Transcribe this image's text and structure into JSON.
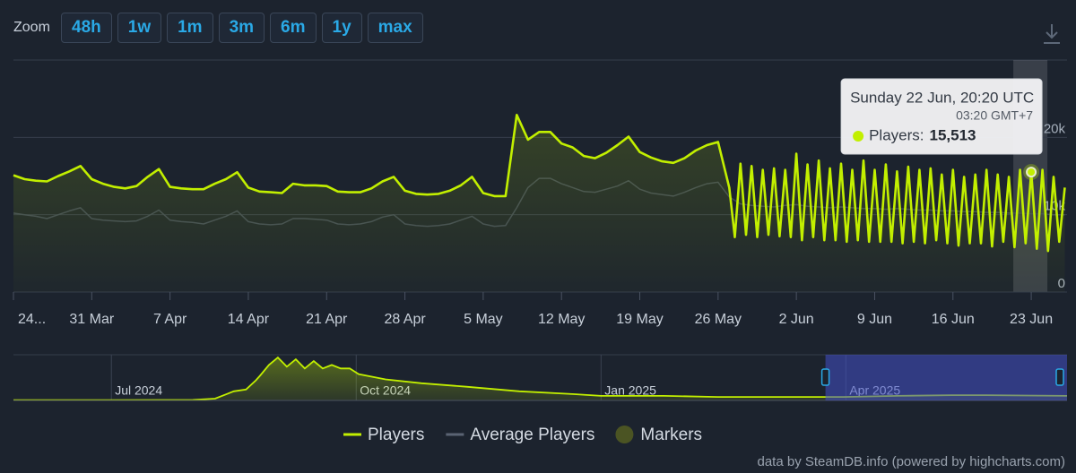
{
  "zoom": {
    "label": "Zoom",
    "buttons": [
      "48h",
      "1w",
      "1m",
      "3m",
      "6m",
      "1y",
      "max"
    ]
  },
  "chart_data": [
    {
      "type": "line",
      "xlim": [
        0,
        94.2
      ],
      "xticks": [
        {
          "value": 0,
          "label": "24..."
        },
        {
          "value": 7,
          "label": "31 Mar"
        },
        {
          "value": 14,
          "label": "7 Apr"
        },
        {
          "value": 21,
          "label": "14 Apr"
        },
        {
          "value": 28,
          "label": "21 Apr"
        },
        {
          "value": 35,
          "label": "28 Apr"
        },
        {
          "value": 42,
          "label": "5 May"
        },
        {
          "value": 49,
          "label": "12 May"
        },
        {
          "value": 56,
          "label": "19 May"
        },
        {
          "value": 63,
          "label": "26 May"
        },
        {
          "value": 70,
          "label": "2 Jun"
        },
        {
          "value": 77,
          "label": "9 Jun"
        },
        {
          "value": 84,
          "label": "16 Jun"
        },
        {
          "value": 91,
          "label": "23 Jun"
        }
      ],
      "ylim": [
        0,
        30000
      ],
      "yticks": [
        0,
        {
          "value": 10000,
          "label": "10k"
        },
        {
          "value": 20000,
          "label": "20k"
        }
      ],
      "grid": true,
      "series": [
        {
          "name": "Players",
          "color": "#c2ef00",
          "x": [
            0,
            1,
            2,
            3,
            4,
            5,
            6,
            7,
            8,
            9,
            10,
            11,
            12,
            13,
            14,
            15,
            16,
            17,
            18,
            19,
            20,
            21,
            22,
            23,
            24,
            25,
            26,
            27,
            28,
            29,
            30,
            31,
            32,
            33,
            34,
            35,
            36,
            37,
            38,
            39,
            40,
            41,
            42,
            43,
            44,
            45,
            46,
            47,
            48,
            49,
            50,
            51,
            52,
            53,
            54,
            55,
            56,
            57,
            58,
            59,
            60,
            61,
            62,
            63,
            64,
            64.5,
            65,
            65.5,
            66,
            66.5,
            67,
            67.5,
            68,
            68.5,
            69,
            69.5,
            70,
            70.5,
            71,
            71.5,
            72,
            72.5,
            73,
            73.5,
            74,
            74.5,
            75,
            75.5,
            76,
            76.5,
            77,
            77.5,
            78,
            78.5,
            79,
            79.5,
            80,
            80.5,
            81,
            81.5,
            82,
            82.5,
            83,
            83.5,
            84,
            84.5,
            85,
            85.5,
            86,
            86.5,
            87,
            87.5,
            88,
            88.5,
            89,
            89.5,
            90,
            90.5,
            91,
            91.5,
            92,
            92.5,
            93,
            93.5,
            94
          ],
          "values": [
            15100,
            14600,
            14400,
            14300,
            15000,
            15600,
            16300,
            14600,
            14000,
            13600,
            13400,
            13700,
            14900,
            15900,
            13600,
            13400,
            13300,
            13300,
            14000,
            14600,
            15500,
            13500,
            13000,
            12900,
            12800,
            14000,
            13800,
            13800,
            13700,
            13000,
            12900,
            12900,
            13400,
            14300,
            14900,
            13100,
            12700,
            12600,
            12700,
            13100,
            13800,
            14900,
            12800,
            12400,
            12400,
            22900,
            19700,
            20700,
            20700,
            19200,
            18700,
            17600,
            17300,
            18000,
            19000,
            20100,
            18100,
            17400,
            16900,
            16700,
            17300,
            18300,
            19000,
            19400,
            13500,
            7100,
            16600,
            7400,
            16300,
            7100,
            15800,
            7400,
            16000,
            7200,
            15800,
            7100,
            17900,
            6700,
            16500,
            7100,
            17000,
            6700,
            16000,
            6700,
            16600,
            6500,
            15800,
            6700,
            17000,
            6500,
            15800,
            6500,
            16500,
            6500,
            15600,
            6300,
            16200,
            6500,
            15800,
            6300,
            16000,
            6700,
            15200,
            6300,
            15800,
            6000,
            14900,
            6300,
            15200,
            6300,
            15800,
            5900,
            15200,
            6500,
            14900,
            5800,
            15800,
            6300,
            15513,
            5600,
            15800,
            5300,
            14900,
            6500,
            13500
          ]
        },
        {
          "name": "Average Players",
          "color": "#3f4858",
          "x": [
            0,
            1,
            2,
            3,
            4,
            5,
            6,
            7,
            8,
            9,
            10,
            11,
            12,
            13,
            14,
            15,
            16,
            17,
            18,
            19,
            20,
            21,
            22,
            23,
            24,
            25,
            26,
            27,
            28,
            29,
            30,
            31,
            32,
            33,
            34,
            35,
            36,
            37,
            38,
            39,
            40,
            41,
            42,
            43,
            44,
            45,
            46,
            47,
            48,
            49,
            50,
            51,
            52,
            53,
            54,
            55,
            56,
            57,
            58,
            59,
            60,
            61,
            62,
            63,
            64,
            65,
            66,
            67,
            68,
            69,
            70,
            71,
            72,
            73,
            74,
            75,
            76,
            77,
            78,
            79,
            80,
            81,
            82,
            83,
            84,
            85,
            86,
            87,
            88,
            89,
            90,
            91,
            92,
            93,
            94
          ],
          "values": [
            10200,
            10000,
            9800,
            9500,
            10000,
            10500,
            10900,
            9500,
            9300,
            9200,
            9100,
            9200,
            9800,
            10600,
            9300,
            9100,
            9000,
            8800,
            9300,
            9800,
            10500,
            9100,
            8800,
            8700,
            8800,
            9500,
            9500,
            9400,
            9300,
            8800,
            8700,
            8800,
            9100,
            9700,
            10000,
            8800,
            8600,
            8500,
            8600,
            8800,
            9300,
            9800,
            8800,
            8500,
            8600,
            10900,
            13500,
            14700,
            14700,
            14000,
            13500,
            13000,
            12900,
            13300,
            13700,
            14400,
            13300,
            12800,
            12600,
            12400,
            12900,
            13500,
            14000,
            14200,
            12300,
            11400,
            11200,
            11100,
            11000,
            11200,
            11300,
            11100,
            11000,
            10900,
            11000,
            10900,
            10800,
            10800,
            10700,
            10800,
            10700,
            10600,
            10600,
            10500,
            10500,
            10400,
            10400,
            10300,
            10300,
            10200,
            10200,
            10100,
            10100,
            10000,
            10000
          ]
        }
      ],
      "markers": {
        "name": "Markers",
        "color": "#4b5423"
      },
      "tooltip": {
        "header": "Sunday 22 Jun, 20:20 UTC",
        "subheader": "03:20 GMT+7",
        "label": "Players:",
        "x": 91,
        "value": 15513,
        "value_label": "15,513"
      }
    },
    {
      "type": "area",
      "xlim": [
        -1.2,
        11.71
      ],
      "xticks": [
        {
          "value": 0,
          "label": "Jul 2024"
        },
        {
          "value": 3,
          "label": "Oct 2024"
        },
        {
          "value": 6,
          "label": "Jan 2025"
        },
        {
          "value": 9,
          "label": "Apr 2025"
        }
      ],
      "ylim": [
        0,
        130000
      ],
      "color": "#c2ef00",
      "selection": [
        8.75,
        11.71
      ],
      "x": [
        -1.2,
        -0.6,
        0,
        0.6,
        1.0,
        1.27,
        1.5,
        1.65,
        1.77,
        1.82,
        1.93,
        2.04,
        2.15,
        2.26,
        2.37,
        2.48,
        2.59,
        2.7,
        2.81,
        2.92,
        3.03,
        3.36,
        3.8,
        4.35,
        5.0,
        5.65,
        6.0,
        6.77,
        7.43,
        8.53,
        8.97,
        9.63,
        10.29,
        10.73,
        11.71
      ],
      "values": [
        900,
        1000,
        1100,
        1200,
        1500,
        5000,
        26000,
        31000,
        57000,
        70000,
        101000,
        122000,
        96000,
        117000,
        91000,
        112000,
        91000,
        101000,
        91000,
        91000,
        75000,
        60000,
        49000,
        39000,
        26000,
        18000,
        13000,
        13000,
        10000,
        10000,
        10000,
        13000,
        15000,
        15000,
        13000
      ]
    }
  ],
  "credit": "data by SteamDB.info (powered by highcharts.com)"
}
